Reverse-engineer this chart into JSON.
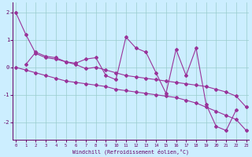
{
  "background_color": "#cceeff",
  "line_color": "#993399",
  "grid_color": "#99cccc",
  "xlabel": "Windchill (Refroidissement éolien,°C)",
  "xlim": [
    -0.3,
    23.3
  ],
  "ylim": [
    -2.65,
    2.35
  ],
  "xticks": [
    0,
    1,
    2,
    3,
    4,
    5,
    6,
    7,
    8,
    9,
    10,
    11,
    12,
    13,
    14,
    15,
    16,
    17,
    18,
    19,
    20,
    21,
    22,
    23
  ],
  "yticks": [
    -2,
    -1,
    0,
    1,
    2
  ],
  "line1_x": [
    0,
    1,
    2,
    3,
    4,
    5,
    6,
    7,
    8,
    9,
    10,
    11,
    12,
    13,
    14,
    15,
    16,
    17,
    18,
    19,
    20,
    21,
    22
  ],
  "line1_y": [
    2.0,
    1.2,
    0.5,
    0.35,
    0.3,
    0.2,
    0.15,
    0.3,
    0.35,
    -0.3,
    -0.45,
    1.1,
    0.7,
    0.55,
    -0.2,
    -0.95,
    0.65,
    -0.3,
    0.7,
    -1.35,
    -2.15,
    -2.3,
    -1.55
  ],
  "line2_x": [
    1,
    2,
    3,
    4,
    5,
    6,
    7,
    8,
    9,
    10,
    11,
    12,
    13,
    14,
    15,
    16,
    17,
    18,
    19,
    20,
    21,
    22,
    23
  ],
  "line2_y": [
    0.1,
    0.55,
    0.4,
    0.35,
    0.2,
    0.1,
    -0.05,
    0.0,
    -0.1,
    -0.2,
    -0.3,
    -0.35,
    -0.4,
    -0.45,
    -0.5,
    -0.55,
    -0.6,
    -0.65,
    -0.7,
    -0.8,
    -0.9,
    -1.05,
    -1.45
  ],
  "line3_x": [
    0,
    1,
    2,
    3,
    4,
    5,
    6,
    7,
    8,
    9,
    10,
    11,
    12,
    13,
    14,
    15,
    16,
    17,
    18,
    19,
    20,
    21,
    22,
    23
  ],
  "line3_y": [
    0.0,
    -0.1,
    -0.2,
    -0.3,
    -0.4,
    -0.5,
    -0.55,
    -0.6,
    -0.65,
    -0.7,
    -0.8,
    -0.85,
    -0.9,
    -0.95,
    -1.0,
    -1.05,
    -1.1,
    -1.2,
    -1.3,
    -1.45,
    -1.6,
    -1.75,
    -1.9,
    -2.3
  ]
}
